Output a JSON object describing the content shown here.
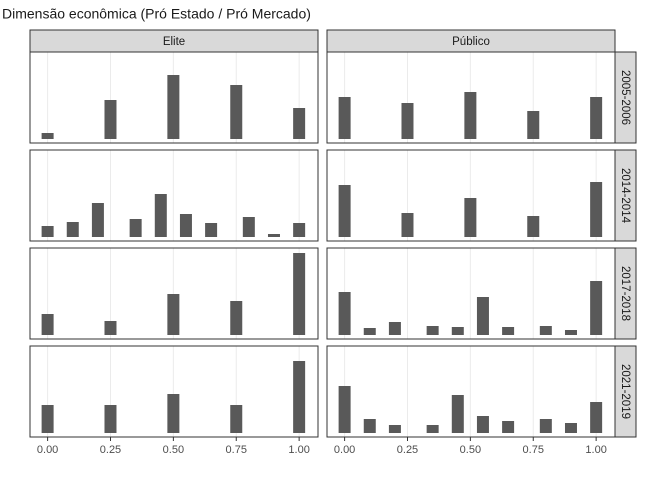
{
  "chart_data": {
    "type": "bar",
    "title": "Dimensão econômica (Pró Estado / Pró Mercado)",
    "color": "#595959",
    "grid": true,
    "columns": [
      "Elite",
      "Público"
    ],
    "rows": [
      "2005-2006",
      "2014-2014",
      "2017-2018",
      "2021-2019"
    ],
    "xlim": [
      -0.07,
      1.075
    ],
    "ylim": [
      -4,
      87
    ],
    "xticks": [
      {
        "value": 0,
        "label": "0.00"
      },
      {
        "value": 0.25,
        "label": "0.25"
      },
      {
        "value": 0.5,
        "label": "0.50"
      },
      {
        "value": 0.75,
        "label": "0.75"
      },
      {
        "value": 1,
        "label": "1.00"
      }
    ],
    "panels": [
      [
        {
          "x": [
            0,
            0.25,
            0.5,
            0.75,
            1
          ],
          "values": [
            6,
            39,
            64,
            54,
            31
          ]
        },
        {
          "x": [
            0,
            0.25,
            0.5,
            0.75,
            1
          ],
          "values": [
            42,
            36,
            47,
            28,
            42
          ]
        }
      ],
      [
        {
          "x": [
            0,
            0.1,
            0.2,
            0.35,
            0.45,
            0.55,
            0.65,
            0.8,
            0.9,
            1
          ],
          "values": [
            11,
            15,
            34,
            18,
            43,
            23,
            14,
            20,
            3,
            14
          ]
        },
        {
          "x": [
            0,
            0.25,
            0.5,
            0.75,
            1
          ],
          "values": [
            52,
            24,
            39,
            21,
            55
          ]
        }
      ],
      [
        {
          "x": [
            0,
            0.25,
            0.5,
            0.75,
            1
          ],
          "values": [
            21,
            14,
            41,
            34,
            82
          ]
        },
        {
          "x": [
            0,
            0.1,
            0.2,
            0.35,
            0.45,
            0.55,
            0.65,
            0.8,
            0.9,
            1
          ],
          "values": [
            43,
            7,
            13,
            9,
            8,
            38,
            8,
            9,
            5,
            54
          ]
        }
      ],
      [
        {
          "x": [
            0,
            0.25,
            0.5,
            0.75,
            1
          ],
          "values": [
            28,
            28,
            39,
            28,
            72
          ]
        },
        {
          "x": [
            0,
            0.1,
            0.2,
            0.35,
            0.45,
            0.55,
            0.65,
            0.8,
            0.9,
            1
          ],
          "values": [
            47,
            14,
            8,
            8,
            38,
            17,
            12,
            14,
            10,
            31
          ]
        }
      ]
    ]
  }
}
